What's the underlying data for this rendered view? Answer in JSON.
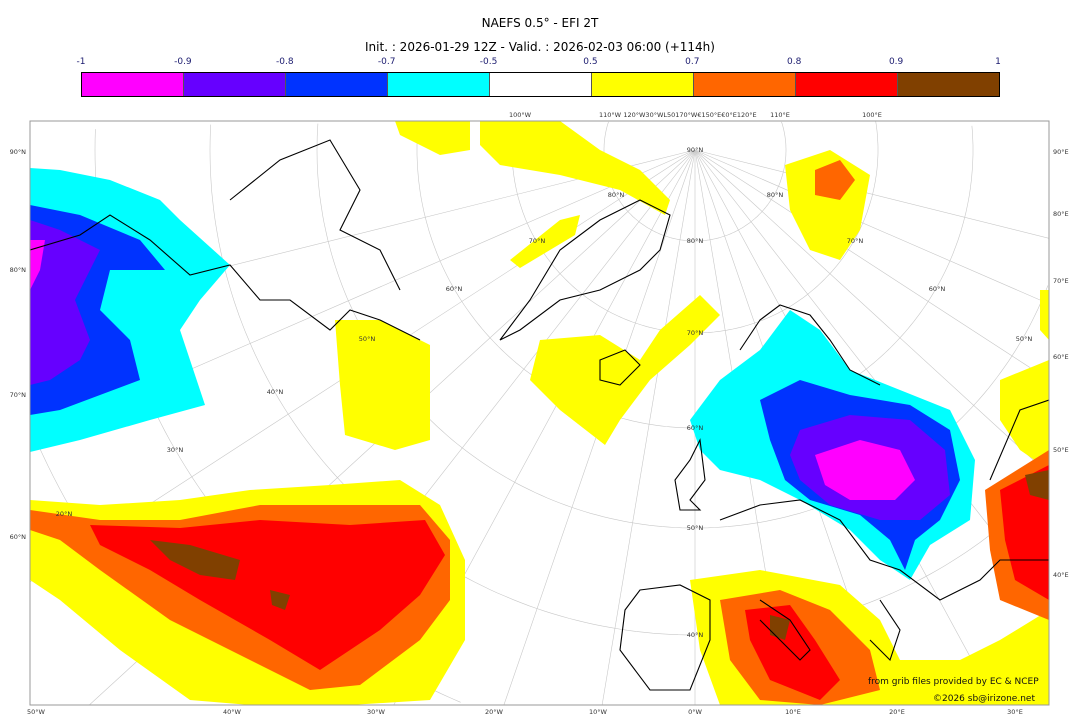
{
  "title": "NAEFS 0.5° - EFI 2T",
  "subtitle": "Init. : 2026-01-29 12Z - Valid. : 2026-02-03 06:00 (+114h)",
  "colorbar": {
    "ticks": [
      "-1",
      "-0.9",
      "-0.8",
      "-0.7",
      "-0.5",
      "0.5",
      "0.7",
      "0.8",
      "0.9",
      "1"
    ],
    "colors": [
      "#ff00ff",
      "#6600ff",
      "#0033ff",
      "#00ffff",
      "#ffffff",
      "#ffff00",
      "#ff6600",
      "#ff0000",
      "#804000"
    ]
  },
  "map": {
    "left_lat_labels": [
      "90°N",
      "80°N",
      "70°N",
      "60°N"
    ],
    "right_lon_labels": [
      "90°E",
      "80°E",
      "70°E",
      "60°E",
      "50°E",
      "40°E"
    ],
    "bottom_lon_labels": [
      "50°W",
      "40°W",
      "30°W",
      "20°W",
      "10°W",
      "0°W",
      "10°E",
      "20°E",
      "30°E"
    ],
    "top_lon_labels": [
      "100°W",
      "110°W",
      "120°W30°WL50170°W€150°E€0°E120°E",
      "110°E",
      "100°E"
    ],
    "inner_lat_labels": [
      "90°N",
      "80°N",
      "70°N",
      "60°N",
      "50°N",
      "40°N",
      "80°N",
      "70°N",
      "60°N",
      "50°N",
      "40°N",
      "30°N",
      "20°N",
      "80°N",
      "70°N",
      "60°N",
      "50°N"
    ]
  },
  "credits": {
    "source": "from grib files provided by EC & NCEP",
    "copyright": "©2026 sb@irizone.net"
  }
}
